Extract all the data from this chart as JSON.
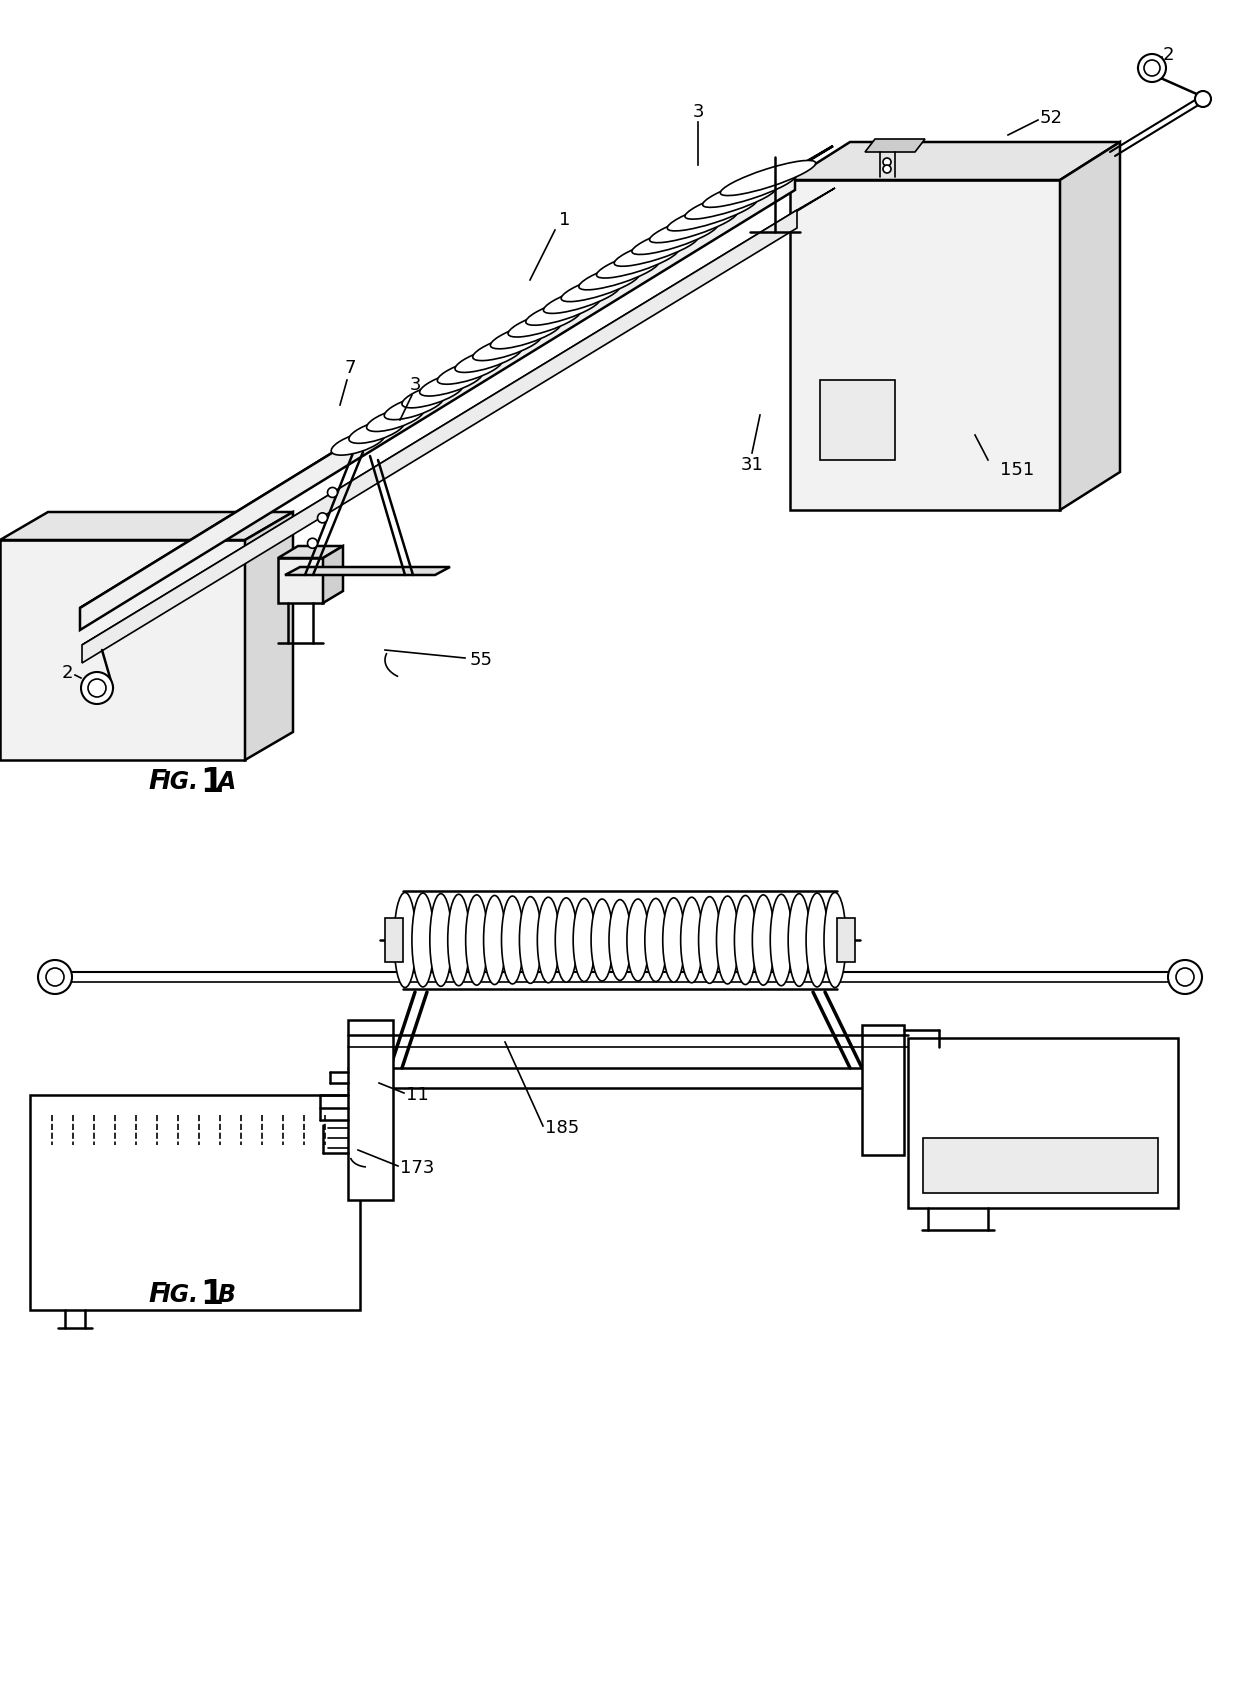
{
  "bg_color": "#ffffff",
  "line_color": "#000000",
  "fig_width": 12.4,
  "fig_height": 17.02,
  "dpi": 100,
  "label_fontsize": 13,
  "caption_fontsize_small": 18,
  "caption_fontsize_num": 26,
  "fig1a_caption_parts": [
    "F",
    "IG.",
    "1",
    "A"
  ],
  "fig1b_caption_parts": [
    "F",
    "IG.",
    "1",
    "B"
  ]
}
